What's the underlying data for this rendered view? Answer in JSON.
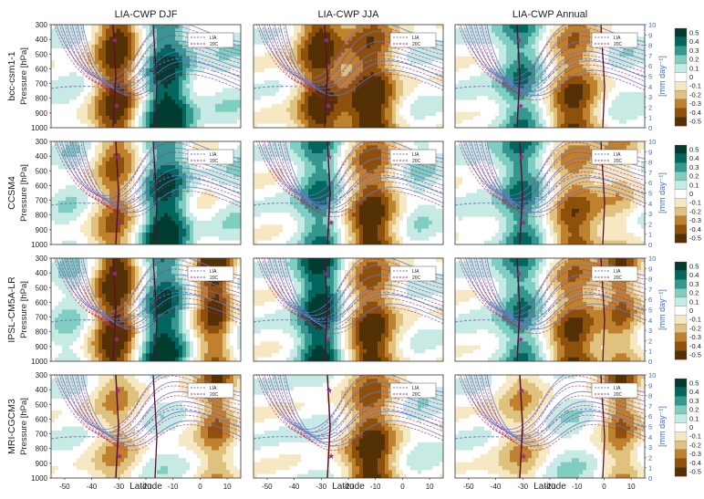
{
  "column_titles": [
    "LIA-CWP DJF",
    "LIA-CWP JJA",
    "LIA-CWP Annual"
  ],
  "row_models": [
    "bcc-csm1-1",
    "CCSM4",
    "IPSL-CM5A-LR",
    "MRI-CGCM3"
  ],
  "y_axis_label": "Pressure [hPa]",
  "x_axis_label": "Latitude",
  "secondary_axis_label": "[mm day⁻¹]",
  "legend_entries": [
    "LIA",
    "20C"
  ],
  "colors": {
    "lia_line": "#6677cc",
    "c20_line": "#bb2255",
    "jet": "#5a0f2a",
    "star": "#9a2a8a",
    "right_axis": "#3a6ec0"
  },
  "colorbar_palette": [
    "#543005",
    "#8c510a",
    "#bf812d",
    "#dfc27d",
    "#f6e8c3",
    "#ffffff",
    "#c7eae5",
    "#80cdc1",
    "#35978f",
    "#01665e",
    "#003c30"
  ],
  "chart_data": {
    "type": "heatmap",
    "panel_grid": {
      "rows": 4,
      "cols": 3
    },
    "x_ticks": [
      -50,
      -40,
      -30,
      -20,
      -10,
      0,
      10
    ],
    "xlim": [
      -55,
      15
    ],
    "y_ticks": [
      300,
      400,
      500,
      600,
      700,
      800,
      900,
      1000
    ],
    "ylim": [
      300,
      1000
    ],
    "secondary_ticks": [
      0,
      1,
      2,
      3,
      4,
      5,
      6,
      7,
      8,
      9,
      10
    ],
    "secondary_lim": [
      0,
      10
    ],
    "colorbar_ticks": [
      "0.5",
      "0.4",
      "0.3",
      "0.2",
      "0.1",
      "0",
      "-0.1",
      "-0.2",
      "-0.3",
      "-0.4",
      "-0.5"
    ],
    "colorbar_range": [
      -0.5,
      0.5
    ],
    "series": [
      "LIA",
      "20C"
    ],
    "grid": false
  }
}
